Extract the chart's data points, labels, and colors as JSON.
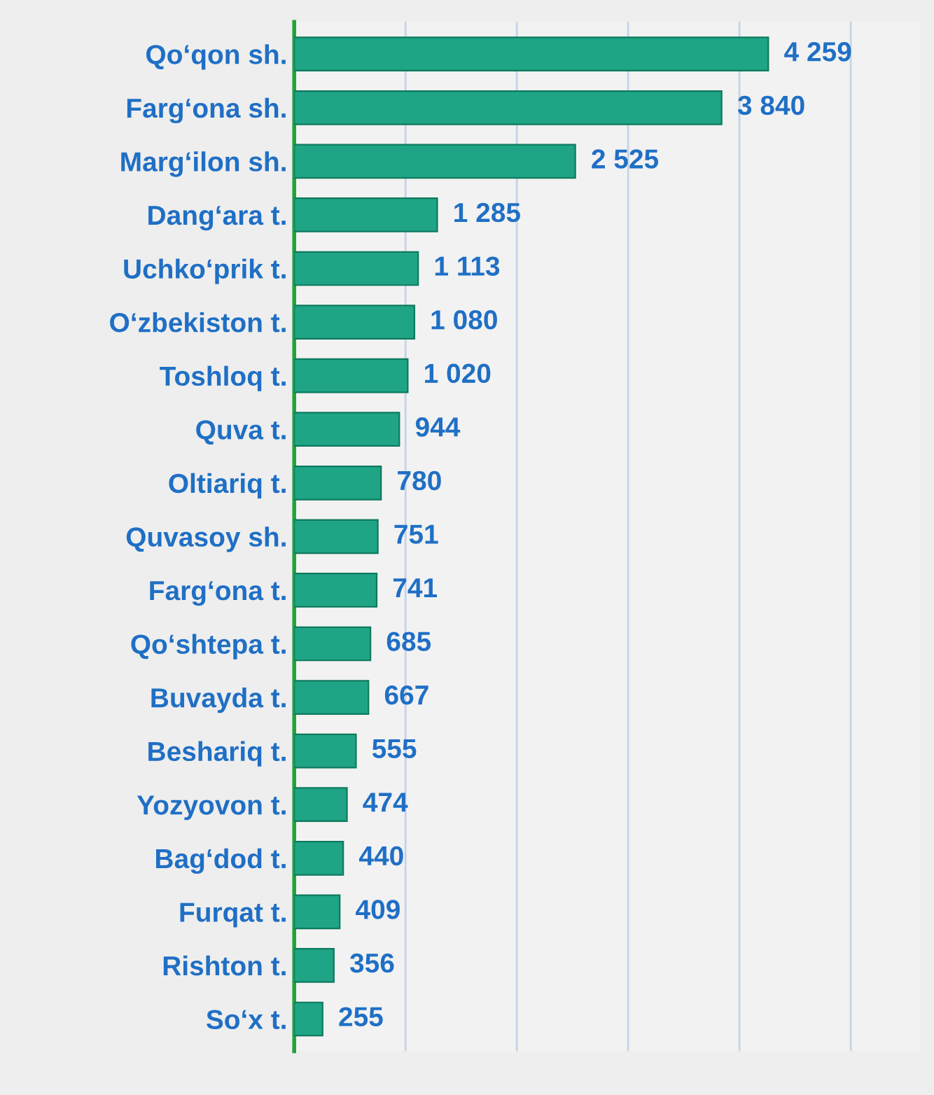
{
  "chart_data": {
    "type": "bar",
    "orientation": "horizontal",
    "categories": [
      "Qo‘qon sh.",
      "Farg‘ona sh.",
      "Marg‘ilon sh.",
      "Dang‘ara t.",
      "Uchko‘prik t.",
      "O‘zbekiston t.",
      "Toshloq t.",
      "Quva t.",
      "Oltiariq t.",
      "Quvasoy sh.",
      "Farg‘ona t.",
      "Qo‘shtepa t.",
      "Buvayda t.",
      "Beshariq t.",
      "Yozyovon t.",
      "Bag‘dod t.",
      "Furqat t.",
      "Rishton t.",
      "So‘x t."
    ],
    "values": [
      4259,
      3840,
      2525,
      1285,
      1113,
      1080,
      1020,
      944,
      780,
      751,
      741,
      685,
      667,
      555,
      474,
      440,
      409,
      356,
      255
    ],
    "value_labels": [
      "4 259",
      "3 840",
      "2 525",
      "1 285",
      "1 113",
      "1 080",
      "1 020",
      "944",
      "780",
      "751",
      "741",
      "685",
      "667",
      "555",
      "474",
      "440",
      "409",
      "356",
      "255"
    ],
    "color": "#1fa585",
    "grid": "x",
    "tick_labels": "y"
  }
}
